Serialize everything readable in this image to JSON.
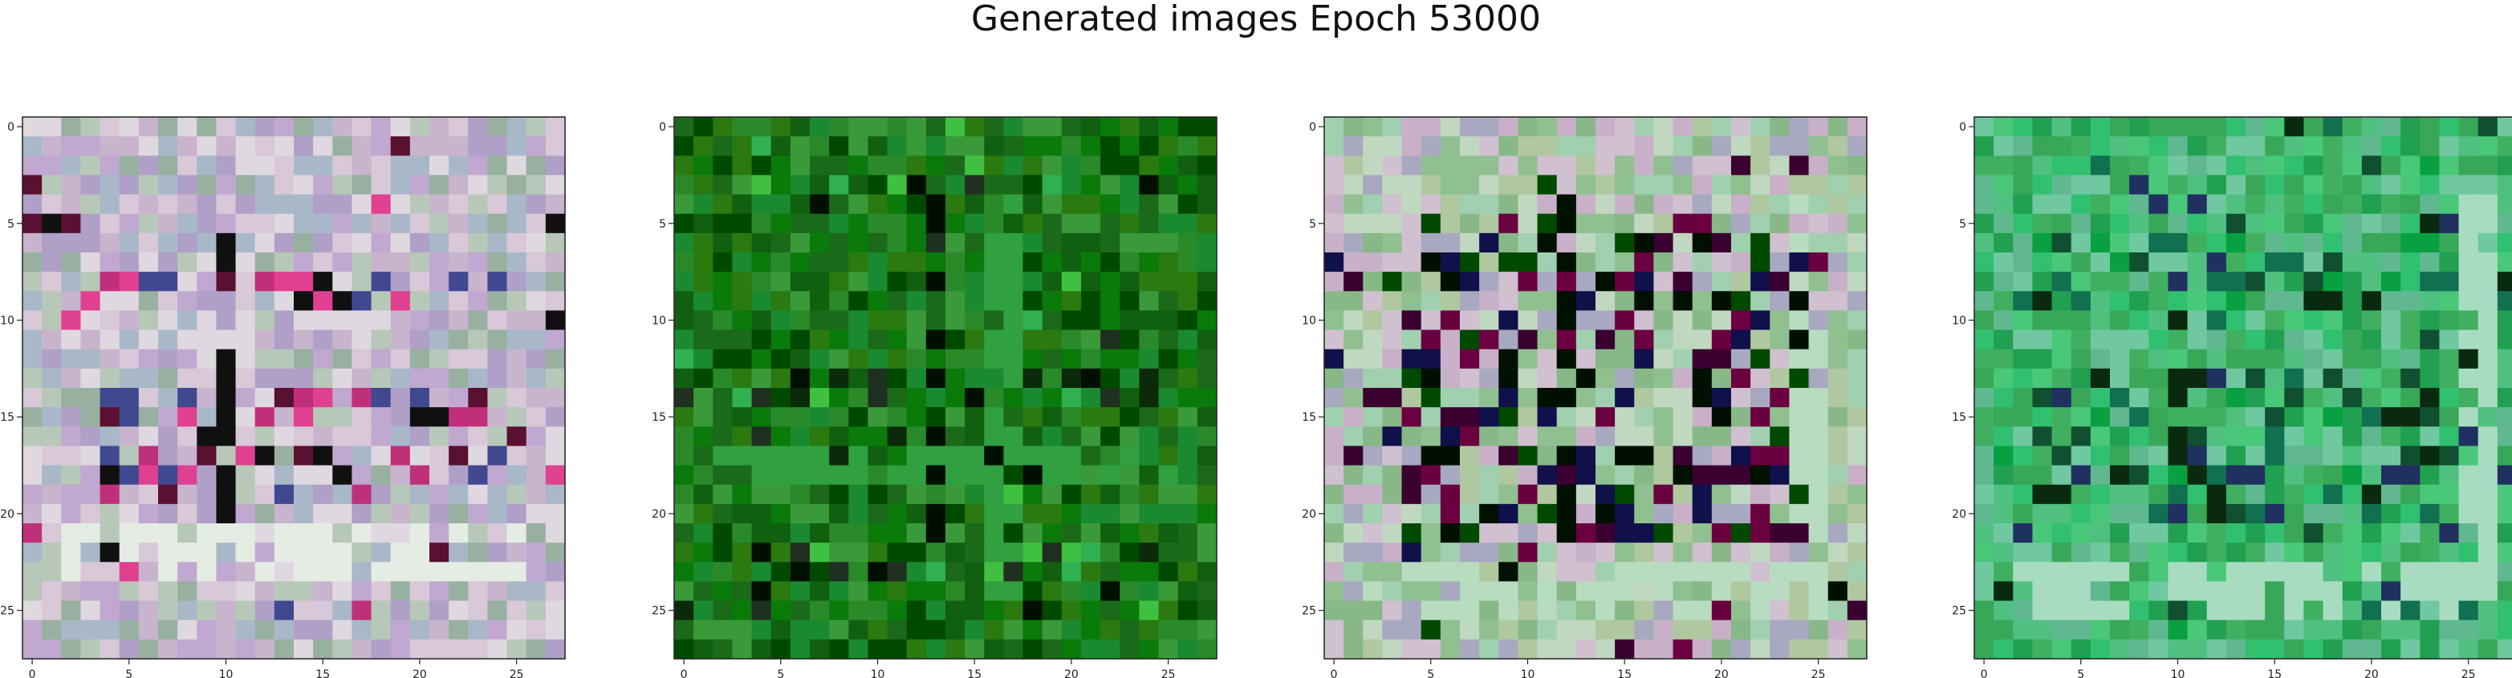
{
  "figure": {
    "title": "Generated images Epoch 53000"
  },
  "chart_data": [
    {
      "type": "heatmap",
      "title": "",
      "xlabel": "",
      "ylabel": "",
      "grid": false,
      "xlim": [
        -0.5,
        27.5
      ],
      "ylim": [
        27.5,
        -0.5
      ],
      "xticks": [
        0,
        5,
        10,
        15,
        20,
        25
      ],
      "yticks": [
        0,
        5,
        10,
        15,
        20,
        25
      ],
      "xtick_labels": [
        "0",
        "5",
        "10",
        "15",
        "20",
        "25"
      ],
      "ytick_labels": [
        "0",
        "5",
        "10",
        "15",
        "20",
        "25"
      ],
      "image": {
        "size": [
          28,
          28
        ],
        "palette": [
          "#c8b4cc",
          "#b8c8b8",
          "#d8c8d8",
          "#a8b8c8",
          "#c0a8d0",
          "#e0d8e0",
          "#98b0a0",
          "#b0a0c8"
        ],
        "accents": [
          "#101010",
          "#c0307a",
          "#5a1030",
          "#e04090",
          "#404890"
        ],
        "stripe_color": "#e4ece4",
        "stripe_rows": [
          21,
          22,
          23
        ],
        "stripe_cols": [],
        "dark_column": 10,
        "dark_rows": [
          8,
          9,
          14,
          15,
          17,
          18,
          19
        ]
      }
    },
    {
      "type": "heatmap",
      "title": "",
      "xlabel": "",
      "ylabel": "",
      "grid": false,
      "xlim": [
        -0.5,
        27.5
      ],
      "ylim": [
        27.5,
        -0.5
      ],
      "xticks": [
        0,
        5,
        10,
        15,
        20,
        25
      ],
      "yticks": [
        0,
        5,
        10,
        15,
        20,
        25
      ],
      "xtick_labels": [
        "0",
        "5",
        "10",
        "15",
        "20",
        "25"
      ],
      "ytick_labels": [
        "0",
        "5",
        "10",
        "15",
        "20",
        "25"
      ],
      "image": {
        "size": [
          28,
          28
        ],
        "palette": [
          "#1a6a1a",
          "#0a7a0a",
          "#2a8a2a",
          "#106010",
          "#3a9a3a",
          "#004a00",
          "#1a8a30",
          "#2a7a10"
        ],
        "accents": [
          "#001000",
          "#0a2a0a",
          "#40c040",
          "#203020",
          "#30b050"
        ],
        "stripe_color": "#30a040",
        "stripe_rows": [
          17,
          18
        ],
        "stripe_cols": [
          16,
          17
        ],
        "dark_column": 13,
        "dark_rows": [
          3,
          13,
          14,
          22,
          23
        ]
      }
    },
    {
      "type": "heatmap",
      "title": "",
      "xlabel": "",
      "ylabel": "",
      "grid": false,
      "xlim": [
        -0.5,
        27.5
      ],
      "ylim": [
        27.5,
        -0.5
      ],
      "xticks": [
        0,
        5,
        10,
        15,
        20,
        25
      ],
      "yticks": [
        0,
        5,
        10,
        15,
        20,
        25
      ],
      "xtick_labels": [
        "0",
        "5",
        "10",
        "15",
        "20",
        "25"
      ],
      "ytick_labels": [
        "0",
        "5",
        "10",
        "15",
        "20",
        "25"
      ],
      "image": {
        "size": [
          28,
          28
        ],
        "palette": [
          "#90c090",
          "#b0c8a0",
          "#c8b0c8",
          "#a0d0b0",
          "#d0c0d0",
          "#88b888",
          "#c0d8c0",
          "#a8a8c0"
        ],
        "accents": [
          "#001000",
          "#3a0030",
          "#10104a",
          "#6a0040",
          "#004a00"
        ],
        "stripe_color": "#b8dcc0",
        "stripe_rows": [
          23,
          24,
          25
        ],
        "stripe_cols": [
          24,
          25
        ],
        "dark_column": 12,
        "dark_rows": [
          5,
          6,
          7,
          8,
          9,
          10,
          11,
          12,
          13,
          14,
          15,
          16,
          17,
          18,
          19,
          20,
          21
        ]
      }
    },
    {
      "type": "heatmap",
      "title": "",
      "xlabel": "",
      "ylabel": "",
      "grid": false,
      "xlim": [
        -0.5,
        27.5
      ],
      "ylim": [
        27.5,
        -0.5
      ],
      "xticks": [
        0,
        5,
        10,
        15,
        20,
        25
      ],
      "yticks": [
        0,
        5,
        10,
        15,
        20,
        25
      ],
      "xtick_labels": [
        "0",
        "5",
        "10",
        "15",
        "20",
        "25"
      ],
      "ytick_labels": [
        "0",
        "5",
        "10",
        "15",
        "20",
        "25"
      ],
      "image": {
        "size": [
          28,
          28
        ],
        "palette": [
          "#40b060",
          "#30c070",
          "#50c080",
          "#60b890",
          "#20a050",
          "#48c878",
          "#70c8a0",
          "#38a858"
        ],
        "accents": [
          "#0a2a10",
          "#105030",
          "#203060",
          "#08a040",
          "#107050"
        ],
        "stripe_color": "#a8dcc0",
        "stripe_rows": [
          23,
          24,
          25
        ],
        "stripe_cols": [
          25,
          26
        ],
        "dark_column": 10,
        "dark_rows": [
          6,
          7,
          8,
          9,
          13,
          14,
          15,
          16,
          17,
          18,
          19,
          20
        ]
      }
    }
  ]
}
